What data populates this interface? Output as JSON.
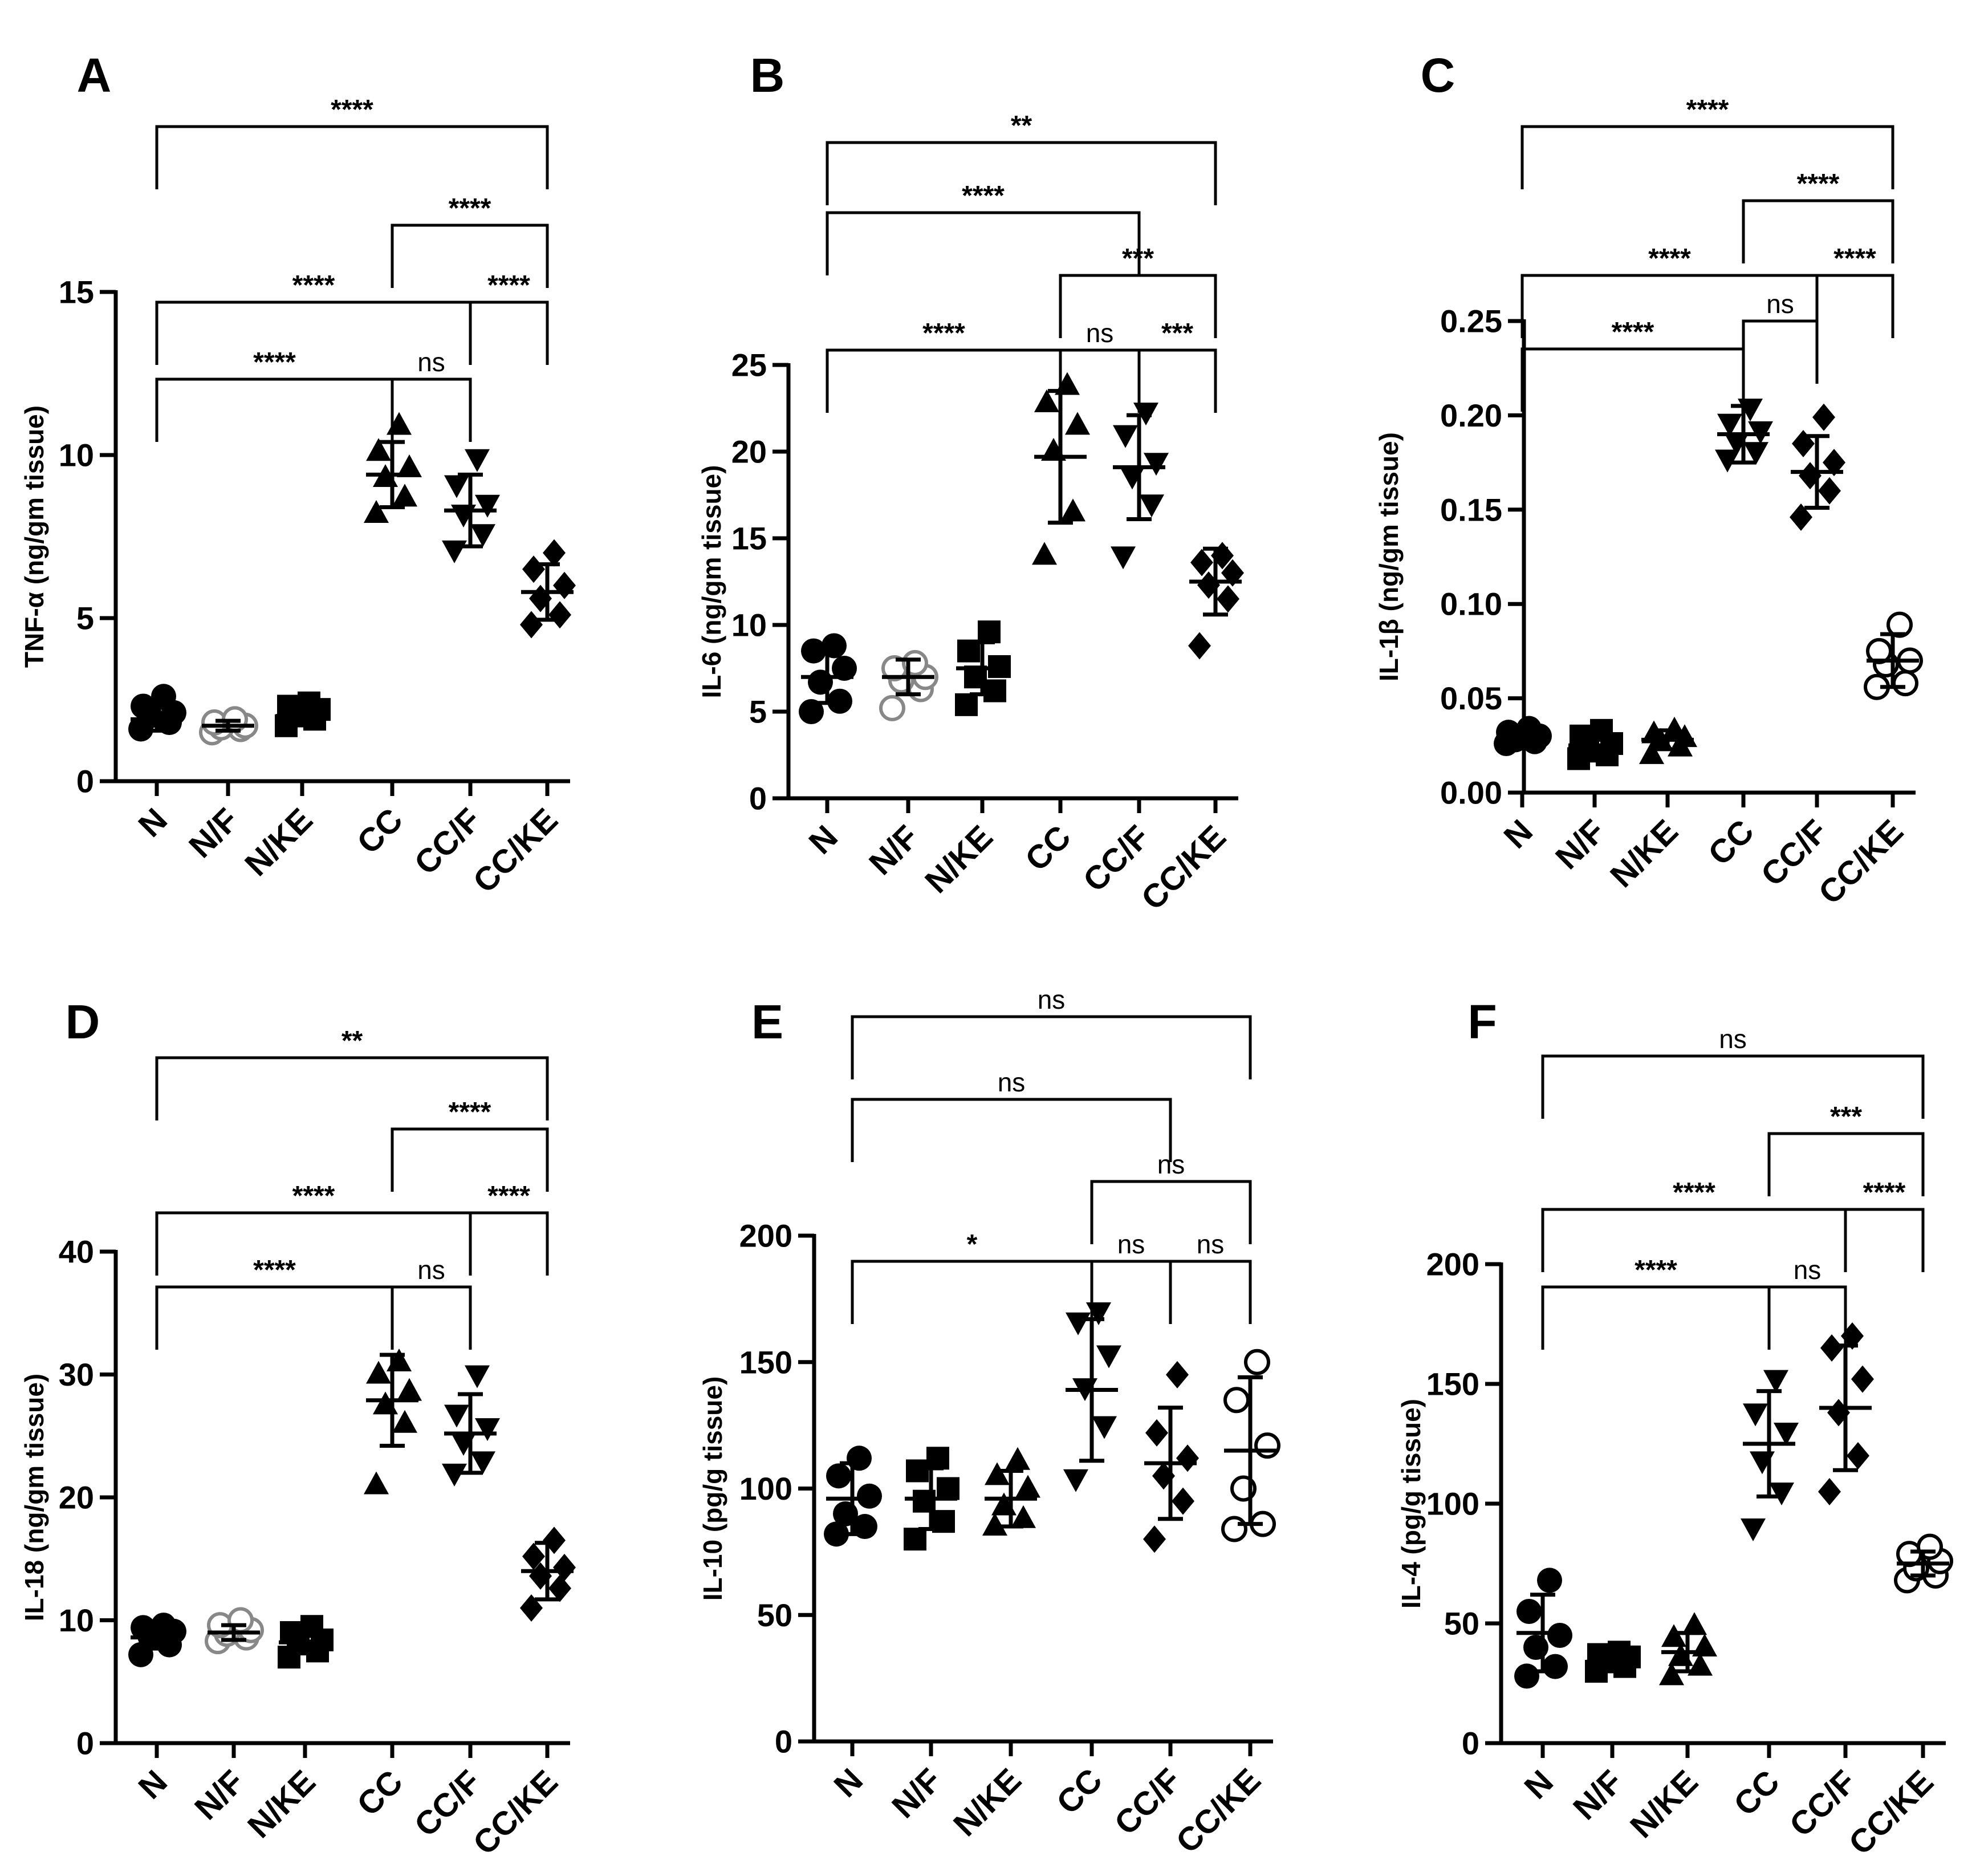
{
  "colors": {
    "ink": "#000000",
    "gray": "#888888",
    "white": "#ffffff"
  },
  "chart_data": [
    {
      "panel": "A",
      "type": "scatter",
      "ylabel": "TNF-α (ng/gm tissue)",
      "ylim": [
        0,
        15
      ],
      "yticks": [
        0,
        5,
        10,
        15
      ],
      "ytick_labels": [
        "0",
        "5",
        "10",
        "15"
      ],
      "categories": [
        "N",
        "N/F",
        "N/KE",
        "CC",
        "CC/F",
        "CC/KE"
      ],
      "groups": [
        {
          "points": [
            1.6,
            1.8,
            2.0,
            2.1,
            2.3,
            2.6
          ],
          "mean": 1.9,
          "sd": 0.35,
          "marker": "circle",
          "color": "#000000"
        },
        {
          "points": [
            1.5,
            1.6,
            1.65,
            1.7,
            1.8,
            1.9
          ],
          "mean": 1.7,
          "sd": 0.15,
          "marker": "circle-open",
          "color": "#888888"
        },
        {
          "points": [
            1.7,
            1.9,
            2.0,
            2.2,
            2.3,
            2.4
          ],
          "mean": 2.0,
          "sd": 0.25,
          "marker": "square",
          "color": "#000000"
        },
        {
          "points": [
            8.2,
            8.7,
            9.3,
            9.6,
            10.1,
            10.9
          ],
          "mean": 9.4,
          "sd": 1.0,
          "marker": "triangle-up",
          "color": "#000000"
        },
        {
          "points": [
            7.1,
            7.6,
            8.2,
            8.5,
            9.1,
            9.9
          ],
          "mean": 8.3,
          "sd": 1.1,
          "marker": "triangle-down",
          "color": "#000000"
        },
        {
          "points": [
            4.8,
            5.1,
            5.6,
            6.0,
            6.5,
            7.0
          ],
          "mean": 5.8,
          "sd": 0.85,
          "marker": "diamond",
          "color": "#000000"
        }
      ],
      "comparisons": [
        {
          "from": 0,
          "to": 3,
          "label": "****"
        },
        {
          "from": 3,
          "to": 4,
          "label": "ns"
        },
        {
          "from": 0,
          "to": 4,
          "label": "****"
        },
        {
          "from": 4,
          "to": 5,
          "label": "****"
        },
        {
          "from": 3,
          "to": 5,
          "label": "****"
        },
        {
          "from": 0,
          "to": 5,
          "label": "****"
        }
      ]
    },
    {
      "panel": "B",
      "type": "scatter",
      "ylabel": "IL-6 (ng/gm tissue)",
      "ylim": [
        0,
        25
      ],
      "yticks": [
        0,
        5,
        10,
        15,
        20,
        25
      ],
      "ytick_labels": [
        "0",
        "5",
        "10",
        "15",
        "20",
        "25"
      ],
      "categories": [
        "N",
        "N/F",
        "N/KE",
        "CC",
        "CC/F",
        "CC/KE"
      ],
      "groups": [
        {
          "points": [
            5.0,
            5.6,
            6.7,
            7.5,
            8.5,
            8.8
          ],
          "mean": 7.0,
          "sd": 1.5,
          "marker": "circle",
          "color": "#000000"
        },
        {
          "points": [
            5.2,
            6.3,
            6.8,
            7.0,
            7.5,
            7.8
          ],
          "mean": 7.0,
          "sd": 1.0,
          "marker": "circle-open",
          "color": "#888888"
        },
        {
          "points": [
            5.4,
            6.2,
            7.0,
            7.6,
            8.5,
            9.6
          ],
          "mean": 7.5,
          "sd": 1.5,
          "marker": "square",
          "color": "#000000"
        },
        {
          "points": [
            14.0,
            16.5,
            20.0,
            21.5,
            22.8,
            23.8
          ],
          "mean": 19.7,
          "sd": 3.8,
          "marker": "triangle-up",
          "color": "#000000"
        },
        {
          "points": [
            14.0,
            17.0,
            18.6,
            19.4,
            21.0,
            22.3
          ],
          "mean": 19.1,
          "sd": 3.0,
          "marker": "triangle-down",
          "color": "#000000"
        },
        {
          "points": [
            8.8,
            11.5,
            12.3,
            13.0,
            13.6,
            14.0
          ],
          "mean": 12.5,
          "sd": 1.9,
          "marker": "diamond",
          "color": "#000000"
        }
      ],
      "comparisons": [
        {
          "from": 0,
          "to": 3,
          "label": "****"
        },
        {
          "from": 3,
          "to": 4,
          "label": "ns"
        },
        {
          "from": 4,
          "to": 5,
          "label": "***"
        },
        {
          "from": 3,
          "to": 5,
          "label": "***"
        },
        {
          "from": 0,
          "to": 4,
          "label": "****"
        },
        {
          "from": 0,
          "to": 5,
          "label": "**"
        }
      ]
    },
    {
      "panel": "C",
      "type": "scatter",
      "ylabel": "IL-1β (ng/gm tissue)",
      "ylim": [
        0,
        0.25
      ],
      "yticks": [
        0,
        0.05,
        0.1,
        0.15,
        0.2,
        0.25
      ],
      "ytick_labels": [
        "0.00",
        "0.05",
        "0.10",
        "0.15",
        "0.20",
        "0.25"
      ],
      "categories": [
        "N",
        "N/F",
        "N/KE",
        "CC",
        "CC/F",
        "CC/KE"
      ],
      "groups": [
        {
          "points": [
            0.026,
            0.027,
            0.028,
            0.03,
            0.032,
            0.034
          ],
          "mean": 0.029,
          "sd": 0.003,
          "marker": "circle",
          "color": "#000000"
        },
        {
          "points": [
            0.018,
            0.02,
            0.022,
            0.026,
            0.03,
            0.033
          ],
          "mean": 0.025,
          "sd": 0.006,
          "marker": "square",
          "color": "#000000"
        },
        {
          "points": [
            0.02,
            0.024,
            0.027,
            0.029,
            0.031,
            0.033
          ],
          "mean": 0.028,
          "sd": 0.005,
          "marker": "triangle-up",
          "color": "#000000"
        },
        {
          "points": [
            0.177,
            0.181,
            0.186,
            0.192,
            0.196,
            0.204
          ],
          "mean": 0.19,
          "sd": 0.015,
          "marker": "triangle-down",
          "color": "#000000"
        },
        {
          "points": [
            0.146,
            0.16,
            0.168,
            0.175,
            0.185,
            0.199
          ],
          "mean": 0.17,
          "sd": 0.019,
          "marker": "diamond",
          "color": "#000000"
        },
        {
          "points": [
            0.056,
            0.058,
            0.068,
            0.07,
            0.075,
            0.089
          ],
          "mean": 0.07,
          "sd": 0.014,
          "marker": "circle-open",
          "color": "#000000"
        }
      ],
      "comparisons": [
        {
          "from": 0,
          "to": 3,
          "label": "****"
        },
        {
          "from": 3,
          "to": 4,
          "label": "ns"
        },
        {
          "from": 0,
          "to": 4,
          "label": "****"
        },
        {
          "from": 4,
          "to": 5,
          "label": "****"
        },
        {
          "from": 3,
          "to": 5,
          "label": "****"
        },
        {
          "from": 0,
          "to": 5,
          "label": "****"
        }
      ]
    },
    {
      "panel": "D",
      "type": "scatter",
      "ylabel": "IL-18 (ng/gm tissue)",
      "ylim": [
        0,
        40
      ],
      "yticks": [
        0,
        10,
        20,
        30,
        40
      ],
      "ytick_labels": [
        "0",
        "10",
        "20",
        "30",
        "40"
      ],
      "categories": [
        "N",
        "N/F",
        "N/KE",
        "CC",
        "CC/F",
        "CC/KE"
      ],
      "groups": [
        {
          "points": [
            7.2,
            8.0,
            8.7,
            9.1,
            9.4,
            9.6
          ],
          "mean": 8.6,
          "sd": 0.9,
          "marker": "circle",
          "color": "#000000"
        },
        {
          "points": [
            8.3,
            8.6,
            8.9,
            9.2,
            9.6,
            10.0
          ],
          "mean": 9.0,
          "sd": 0.6,
          "marker": "circle-open",
          "color": "#888888"
        },
        {
          "points": [
            7.0,
            7.5,
            8.1,
            8.4,
            9.0,
            9.5
          ],
          "mean": 8.2,
          "sd": 0.9,
          "marker": "square",
          "color": "#000000"
        },
        {
          "points": [
            21.0,
            26.0,
            27.5,
            28.6,
            30.0,
            31.0
          ],
          "mean": 27.9,
          "sd": 3.7,
          "marker": "triangle-up",
          "color": "#000000"
        },
        {
          "points": [
            22.0,
            23.0,
            24.5,
            25.7,
            26.8,
            30.0
          ],
          "mean": 25.2,
          "sd": 3.2,
          "marker": "triangle-down",
          "color": "#000000"
        },
        {
          "points": [
            11.0,
            12.6,
            13.6,
            14.3,
            15.2,
            16.5
          ],
          "mean": 14.0,
          "sd": 2.3,
          "marker": "diamond",
          "color": "#000000"
        }
      ],
      "comparisons": [
        {
          "from": 0,
          "to": 3,
          "label": "****"
        },
        {
          "from": 3,
          "to": 4,
          "label": "ns"
        },
        {
          "from": 0,
          "to": 4,
          "label": "****"
        },
        {
          "from": 4,
          "to": 5,
          "label": "****"
        },
        {
          "from": 3,
          "to": 5,
          "label": "****"
        },
        {
          "from": 0,
          "to": 5,
          "label": "**"
        }
      ]
    },
    {
      "panel": "E",
      "type": "scatter",
      "ylabel": "IL-10 (pg/g tissue)",
      "ylim": [
        0,
        200
      ],
      "yticks": [
        0,
        50,
        100,
        150,
        200
      ],
      "ytick_labels": [
        "0",
        "50",
        "100",
        "150",
        "200"
      ],
      "categories": [
        "N",
        "N/F",
        "N/KE",
        "CC",
        "CC/F",
        "CC/KE"
      ],
      "groups": [
        {
          "points": [
            82,
            85,
            90,
            97,
            105,
            112
          ],
          "mean": 96,
          "sd": 14,
          "marker": "circle",
          "color": "#000000"
        },
        {
          "points": [
            80,
            87,
            95,
            100,
            107,
            112
          ],
          "mean": 96,
          "sd": 12,
          "marker": "square",
          "color": "#000000"
        },
        {
          "points": [
            85,
            88,
            93,
            100,
            105,
            111
          ],
          "mean": 96,
          "sd": 11,
          "marker": "triangle-up",
          "color": "#000000"
        },
        {
          "points": [
            104,
            125,
            140,
            153,
            166,
            170
          ],
          "mean": 139,
          "sd": 28,
          "marker": "triangle-down",
          "color": "#000000"
        },
        {
          "points": [
            80,
            95,
            105,
            112,
            122,
            145
          ],
          "mean": 110,
          "sd": 22,
          "marker": "diamond",
          "color": "#000000"
        },
        {
          "points": [
            84,
            86,
            100,
            117,
            135,
            150
          ],
          "mean": 115,
          "sd": 29,
          "marker": "circle-open",
          "color": "#000000"
        }
      ],
      "comparisons": [
        {
          "from": 0,
          "to": 3,
          "label": "*"
        },
        {
          "from": 3,
          "to": 4,
          "label": "ns"
        },
        {
          "from": 4,
          "to": 5,
          "label": "ns"
        },
        {
          "from": 3,
          "to": 5,
          "label": "ns"
        },
        {
          "from": 0,
          "to": 4,
          "label": "ns"
        },
        {
          "from": 0,
          "to": 5,
          "label": "ns"
        }
      ]
    },
    {
      "panel": "F",
      "type": "scatter",
      "ylabel": "IL-4 (pg/g tissue)",
      "ylim": [
        0,
        200
      ],
      "yticks": [
        0,
        50,
        100,
        150,
        200
      ],
      "ytick_labels": [
        "0",
        "50",
        "100",
        "150",
        "200"
      ],
      "categories": [
        "N",
        "N/F",
        "N/KE",
        "CC",
        "CC/F",
        "CC/KE"
      ],
      "groups": [
        {
          "points": [
            28,
            32,
            40,
            45,
            55,
            68
          ],
          "mean": 46,
          "sd": 16,
          "marker": "circle",
          "color": "#000000"
        },
        {
          "points": [
            30,
            32,
            34,
            36,
            37,
            38
          ],
          "mean": 34,
          "sd": 4,
          "marker": "square",
          "color": "#000000"
        },
        {
          "points": [
            28,
            32,
            36,
            40,
            44,
            49
          ],
          "mean": 38,
          "sd": 8,
          "marker": "triangle-up",
          "color": "#000000"
        },
        {
          "points": [
            90,
            105,
            118,
            130,
            138,
            152
          ],
          "mean": 125,
          "sd": 22,
          "marker": "triangle-down",
          "color": "#000000"
        },
        {
          "points": [
            105,
            120,
            138,
            152,
            165,
            170
          ],
          "mean": 140,
          "sd": 26,
          "marker": "diamond",
          "color": "#000000"
        },
        {
          "points": [
            68,
            70,
            73,
            76,
            79,
            82
          ],
          "mean": 75,
          "sd": 5,
          "marker": "circle-open",
          "color": "#000000"
        }
      ],
      "comparisons": [
        {
          "from": 0,
          "to": 3,
          "label": "****"
        },
        {
          "from": 3,
          "to": 4,
          "label": "ns"
        },
        {
          "from": 0,
          "to": 4,
          "label": "****"
        },
        {
          "from": 4,
          "to": 5,
          "label": "****"
        },
        {
          "from": 3,
          "to": 5,
          "label": "***"
        },
        {
          "from": 0,
          "to": 5,
          "label": "ns"
        }
      ]
    }
  ]
}
